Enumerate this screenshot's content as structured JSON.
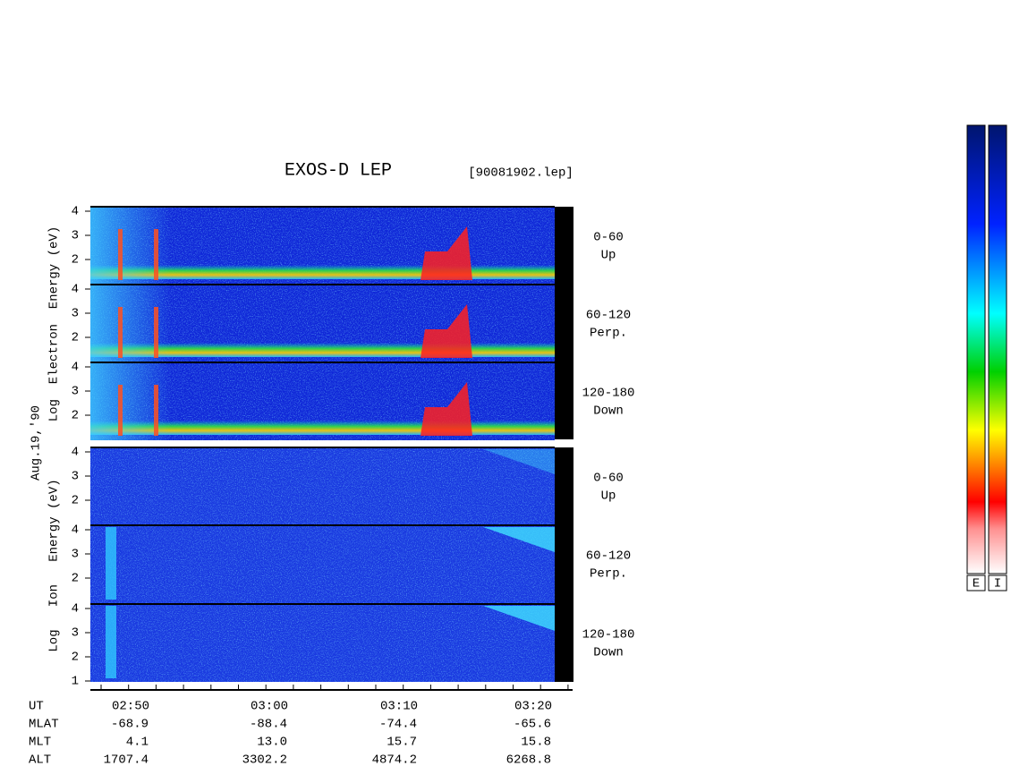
{
  "title": "EXOS-D LEP",
  "file": "[90081902.lep]",
  "date": "Aug.19,'90",
  "groups": [
    {
      "label": "Log  Electron  Energy (eV)"
    },
    {
      "label": "Log   Ion   Energy (eV)"
    }
  ],
  "panels": [
    {
      "angle": "0-60",
      "direction": "Up",
      "ticks": [
        4,
        3,
        2
      ]
    },
    {
      "angle": "60-120",
      "direction": "Perp.",
      "ticks": [
        4,
        3,
        2
      ]
    },
    {
      "angle": "120-180",
      "direction": "Down",
      "ticks": [
        4,
        3,
        2
      ]
    },
    {
      "angle": "0-60",
      "direction": "Up",
      "ticks": [
        4,
        3,
        2
      ]
    },
    {
      "angle": "60-120",
      "direction": "Perp.",
      "ticks": [
        4,
        3,
        2
      ]
    },
    {
      "angle": "120-180",
      "direction": "Down",
      "ticks": [
        4,
        3,
        2,
        1
      ]
    }
  ],
  "axis": {
    "name": "UT",
    "ticks": [
      "02:50",
      "03:00",
      "03:10",
      "03:20"
    ],
    "rows": [
      {
        "name": "MLAT",
        "values": [
          "-68.9",
          "-88.4",
          "-74.4",
          "-65.6"
        ]
      },
      {
        "name": "MLT",
        "values": [
          "4.1",
          "13.0",
          "15.7",
          "15.8"
        ]
      },
      {
        "name": "ALT",
        "values": [
          "1707.4",
          "3302.2",
          "4874.2",
          "6268.8"
        ]
      }
    ]
  },
  "colorbars": [
    "E",
    "I"
  ]
}
